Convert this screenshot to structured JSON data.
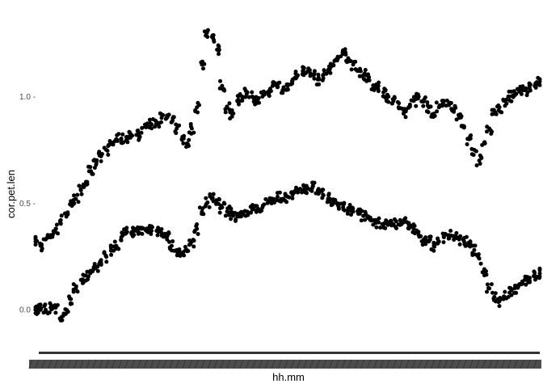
{
  "chart_data": {
    "type": "scatter",
    "xlabel": "hh.mm",
    "ylabel": "cor.pet.len",
    "ylim": [
      -0.17,
      1.4
    ],
    "xlim": [
      0,
      100
    ],
    "y_ticks": [
      0.0,
      0.5,
      1.0
    ],
    "y_tick_labels": [
      "0.0 -",
      "0.5 -",
      "1.0 -"
    ],
    "grid": false,
    "legend": "none",
    "point_color": "#000000",
    "x_ticks_overplotted": true,
    "series": [
      {
        "x": [
          0.0,
          1.0,
          2.0,
          3.0,
          4.0,
          5.0,
          6.0,
          7.0,
          8.0,
          9.0,
          10.0,
          11.0,
          12.0,
          13.0,
          14.0,
          15.0,
          16.0,
          17.0,
          18.0,
          19.0,
          20.0,
          21.0,
          22.0,
          23.0,
          24.0,
          25.0,
          26.0,
          27.0,
          28.0,
          29.0,
          30.0,
          31.0,
          32.0,
          33.0,
          34.0,
          35.0,
          36.0,
          37.0,
          38.0,
          39.0,
          40.0,
          41.0,
          42.0,
          43.0,
          44.0,
          45.0,
          46.0,
          47.0,
          48.0,
          49.0,
          50.0,
          51.0,
          52.0,
          53.0,
          54.0,
          55.0,
          56.0,
          57.0,
          58.0,
          59.0,
          60.0,
          61.0,
          62.0,
          63.0,
          64.0,
          65.0,
          66.0,
          67.0,
          68.0,
          69.0,
          70.0,
          71.0,
          72.0,
          73.0,
          74.0,
          75.0,
          76.0,
          77.0,
          78.0,
          79.0,
          80.0,
          81.0,
          82.0,
          83.0,
          84.0,
          85.0,
          86.0,
          87.0,
          88.0,
          89.0,
          90.0,
          91.0,
          92.0,
          93.0,
          94.0,
          95.0,
          96.0,
          97.0,
          98.0,
          99.0,
          100.0
        ],
        "y": [
          0.32,
          0.3,
          0.33,
          0.35,
          0.38,
          0.42,
          0.45,
          0.5,
          0.52,
          0.56,
          0.6,
          0.65,
          0.68,
          0.72,
          0.75,
          0.78,
          0.8,
          0.8,
          0.81,
          0.82,
          0.82,
          0.83,
          0.86,
          0.87,
          0.88,
          0.9,
          0.9,
          0.88,
          0.85,
          0.8,
          0.78,
          0.85,
          0.95,
          1.15,
          1.3,
          1.28,
          1.22,
          1.05,
          0.95,
          0.92,
          0.98,
          1.0,
          1.02,
          1.0,
          0.98,
          1.0,
          1.02,
          1.05,
          1.05,
          1.03,
          1.05,
          1.08,
          1.1,
          1.12,
          1.12,
          1.1,
          1.08,
          1.1,
          1.12,
          1.15,
          1.18,
          1.2,
          1.18,
          1.15,
          1.12,
          1.1,
          1.08,
          1.05,
          1.05,
          1.02,
          1.0,
          0.98,
          0.95,
          0.92,
          0.95,
          0.98,
          1.0,
          0.98,
          0.95,
          0.92,
          0.95,
          0.98,
          0.96,
          0.94,
          0.9,
          0.86,
          0.8,
          0.75,
          0.7,
          0.78,
          0.85,
          0.92,
          0.95,
          0.98,
          1.0,
          1.02,
          1.03,
          1.03,
          1.04,
          1.05,
          1.07
        ]
      },
      {
        "x": [
          0.0,
          1.0,
          2.0,
          3.0,
          4.0,
          5.0,
          6.0,
          7.0,
          8.0,
          9.0,
          10.0,
          11.0,
          12.0,
          13.0,
          14.0,
          15.0,
          16.0,
          17.0,
          18.0,
          19.0,
          20.0,
          21.0,
          22.0,
          23.0,
          24.0,
          25.0,
          26.0,
          27.0,
          28.0,
          29.0,
          30.0,
          31.0,
          32.0,
          33.0,
          34.0,
          35.0,
          36.0,
          37.0,
          38.0,
          39.0,
          40.0,
          41.0,
          42.0,
          43.0,
          44.0,
          45.0,
          46.0,
          47.0,
          48.0,
          49.0,
          50.0,
          51.0,
          52.0,
          53.0,
          54.0,
          55.0,
          56.0,
          57.0,
          58.0,
          59.0,
          60.0,
          61.0,
          62.0,
          63.0,
          64.0,
          65.0,
          66.0,
          67.0,
          68.0,
          69.0,
          70.0,
          71.0,
          72.0,
          73.0,
          74.0,
          75.0,
          76.0,
          77.0,
          78.0,
          79.0,
          80.0,
          81.0,
          82.0,
          83.0,
          84.0,
          85.0,
          86.0,
          87.0,
          88.0,
          89.0,
          90.0,
          91.0,
          92.0,
          93.0,
          94.0,
          95.0,
          96.0,
          97.0,
          98.0,
          99.0,
          100.0
        ],
        "y": [
          0.0,
          0.0,
          0.0,
          0.01,
          0.01,
          -0.05,
          -0.02,
          0.05,
          0.1,
          0.14,
          0.16,
          0.18,
          0.2,
          0.22,
          0.25,
          0.28,
          0.3,
          0.34,
          0.36,
          0.36,
          0.37,
          0.38,
          0.38,
          0.37,
          0.37,
          0.36,
          0.34,
          0.3,
          0.28,
          0.26,
          0.28,
          0.32,
          0.38,
          0.46,
          0.5,
          0.52,
          0.5,
          0.48,
          0.46,
          0.45,
          0.44,
          0.45,
          0.46,
          0.47,
          0.47,
          0.48,
          0.5,
          0.52,
          0.53,
          0.52,
          0.53,
          0.54,
          0.55,
          0.56,
          0.57,
          0.58,
          0.56,
          0.54,
          0.52,
          0.5,
          0.49,
          0.48,
          0.47,
          0.46,
          0.45,
          0.44,
          0.43,
          0.42,
          0.41,
          0.4,
          0.4,
          0.4,
          0.4,
          0.41,
          0.4,
          0.38,
          0.35,
          0.33,
          0.32,
          0.3,
          0.32,
          0.34,
          0.35,
          0.34,
          0.33,
          0.32,
          0.3,
          0.28,
          0.24,
          0.18,
          0.1,
          0.06,
          0.04,
          0.06,
          0.08,
          0.1,
          0.12,
          0.14,
          0.15,
          0.16,
          0.17
        ]
      }
    ]
  }
}
